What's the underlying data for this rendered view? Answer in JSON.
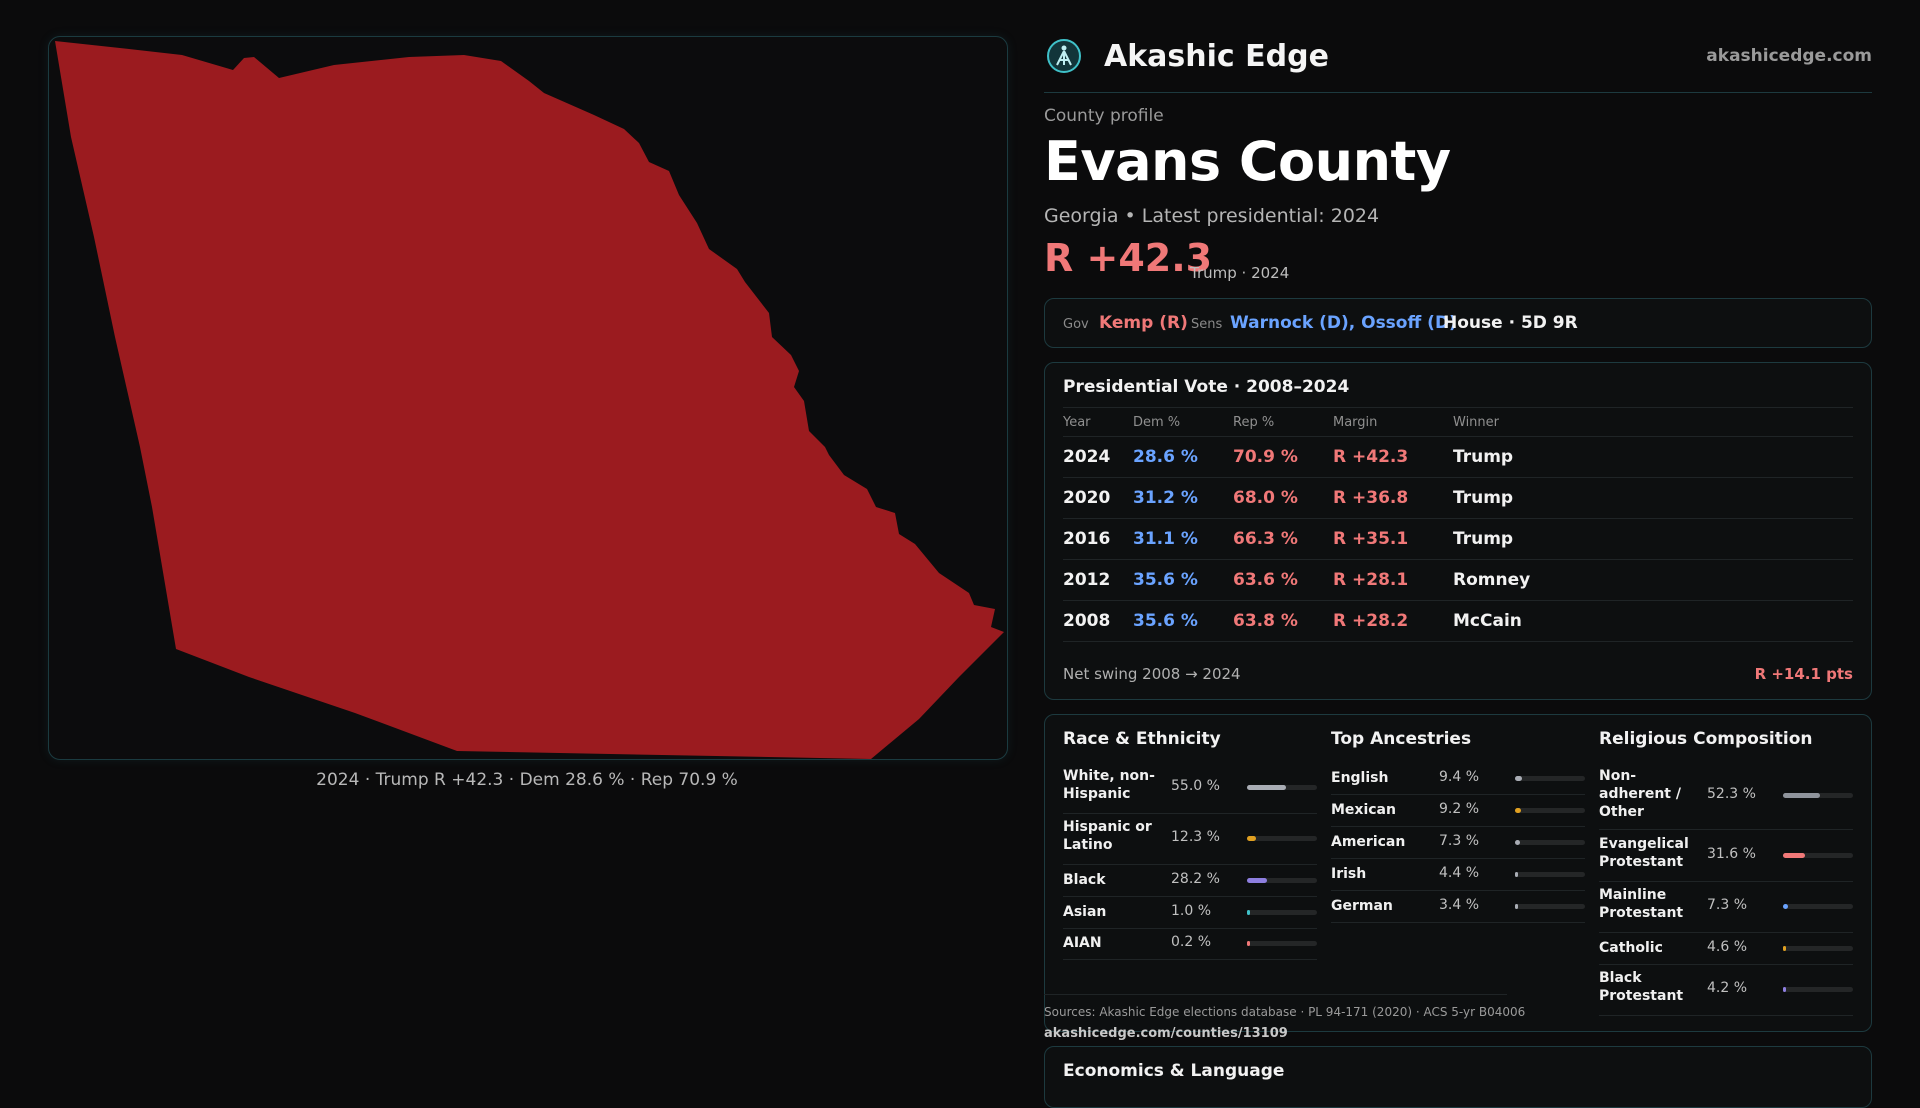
{
  "brand": {
    "name": "Akashic Edge",
    "url": "akashicedge.com",
    "accent": "#3fc1c9"
  },
  "map": {
    "caption": "2024 · Trump R +42.3 · Dem 28.6 % · Rep 70.9 %",
    "fill_color": "#9b1b1f"
  },
  "county": {
    "kicker": "County profile",
    "name": "Evans County",
    "subtitle": "Georgia • Latest presidential: 2024",
    "margin": "R +42.3",
    "margin_note": "Trump · 2024"
  },
  "officials": {
    "gov_label": "Gov",
    "gov": "Kemp (R)",
    "sens_label": "Sens",
    "sens": "Warnock (D), Ossoff (D)",
    "house": "House · 5D 9R"
  },
  "presidential": {
    "title": "Presidential Vote · 2008–2024",
    "headers": [
      "Year",
      "Dem %",
      "Rep %",
      "Margin",
      "Winner"
    ],
    "rows": [
      {
        "year": "2024",
        "dem": "28.6 %",
        "rep": "70.9 %",
        "margin": "R +42.3",
        "winner": "Trump"
      },
      {
        "year": "2020",
        "dem": "31.2 %",
        "rep": "68.0 %",
        "margin": "R +36.8",
        "winner": "Trump"
      },
      {
        "year": "2016",
        "dem": "31.1 %",
        "rep": "66.3 %",
        "margin": "R +35.1",
        "winner": "Trump"
      },
      {
        "year": "2012",
        "dem": "35.6 %",
        "rep": "63.6 %",
        "margin": "R +28.1",
        "winner": "Romney"
      },
      {
        "year": "2008",
        "dem": "35.6 %",
        "rep": "63.8 %",
        "margin": "R +28.2",
        "winner": "McCain"
      }
    ],
    "swing_label": "Net swing 2008 → 2024",
    "swing_value": "R +14.1 pts"
  },
  "race": {
    "title": "Race & Ethnicity",
    "rows": [
      {
        "label": "White, non-Hispanic",
        "pct": "55.0 %",
        "value": 0.55,
        "color": "#a9adb5"
      },
      {
        "label": "Hispanic or Latino",
        "pct": "12.3 %",
        "value": 0.123,
        "color": "#e0a021"
      },
      {
        "label": "Black",
        "pct": "28.2 %",
        "value": 0.282,
        "color": "#8e7fe0"
      },
      {
        "label": "Asian",
        "pct": "1.0 %",
        "value": 0.01,
        "color": "#3fc1c9"
      },
      {
        "label": "AIAN",
        "pct": "0.2 %",
        "value": 0.002,
        "color": "#f07878"
      }
    ]
  },
  "ancestry": {
    "title": "Top Ancestries",
    "rows": [
      {
        "label": "English",
        "pct": "9.4 %",
        "value": 0.094,
        "color": "#a9adb5"
      },
      {
        "label": "Mexican",
        "pct": "9.2 %",
        "value": 0.092,
        "color": "#e0a021"
      },
      {
        "label": "American",
        "pct": "7.3 %",
        "value": 0.073,
        "color": "#a9adb5"
      },
      {
        "label": "Irish",
        "pct": "4.4 %",
        "value": 0.044,
        "color": "#a9adb5"
      },
      {
        "label": "German",
        "pct": "3.4 %",
        "value": 0.034,
        "color": "#a9adb5"
      }
    ]
  },
  "religion": {
    "title": "Religious Composition",
    "rows": [
      {
        "label": "Non-adherent / Other",
        "pct": "52.3 %",
        "value": 0.523,
        "color": "#8f949c"
      },
      {
        "label": "Evangelical Protestant",
        "pct": "31.6 %",
        "value": 0.316,
        "color": "#f07878"
      },
      {
        "label": "Mainline Protestant",
        "pct": "7.3 %",
        "value": 0.073,
        "color": "#6aa3ff"
      },
      {
        "label": "Catholic",
        "pct": "4.6 %",
        "value": 0.046,
        "color": "#e0a021"
      },
      {
        "label": "Black Protestant",
        "pct": "4.2 %",
        "value": 0.042,
        "color": "#8e7fe0"
      }
    ]
  },
  "sources": {
    "text": "Sources: Akashic Edge elections database · PL 94-171 (2020) · ACS 5-yr B04006",
    "url": "akashicedge.com/counties/13109"
  },
  "economics": {
    "title": "Economics & Language"
  }
}
